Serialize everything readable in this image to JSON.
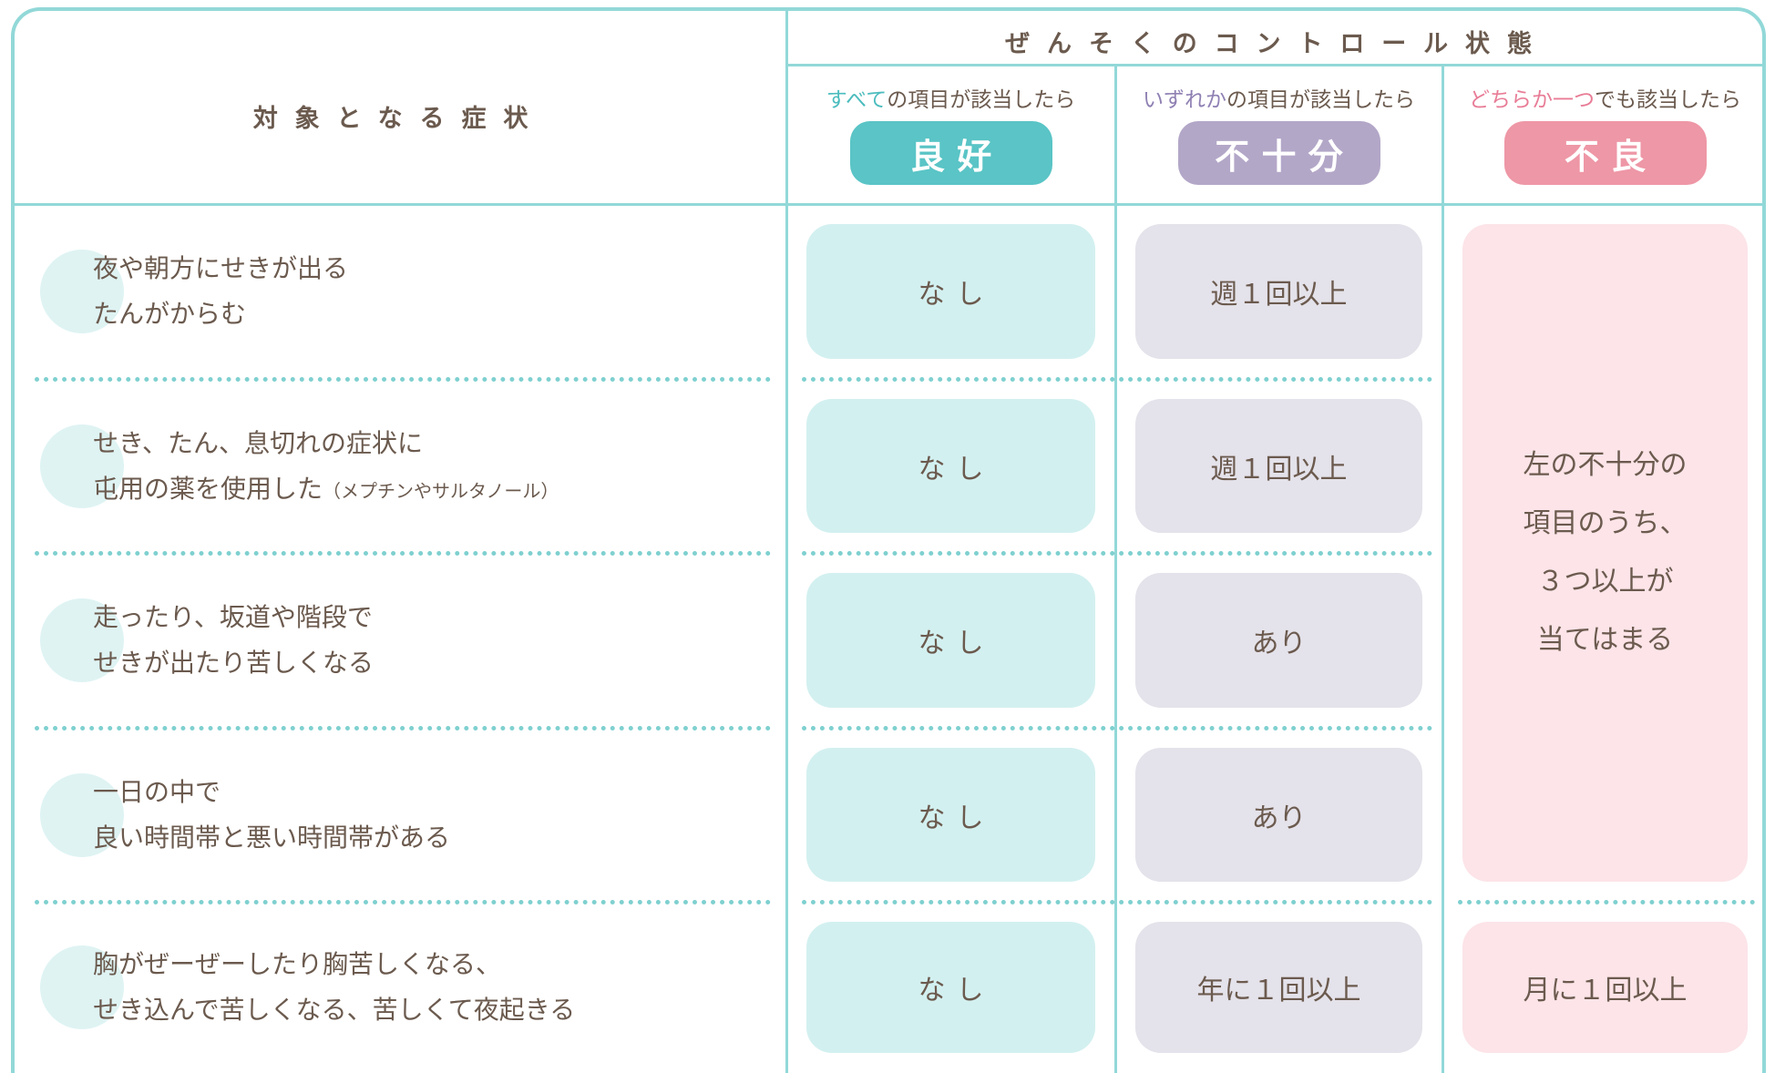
{
  "header": {
    "symptoms_label": "対象となる症状",
    "control_label": "ぜんそくのコントロール状態"
  },
  "columns": [
    {
      "condition_key": "すべて",
      "condition_rest": "の項目が該当したら",
      "label": "良好"
    },
    {
      "condition_key": "いずれか",
      "condition_rest": "の項目が該当したら",
      "label": "不十分"
    },
    {
      "condition_key": "どちらか一つ",
      "condition_rest": "でも該当したら",
      "label": "不良"
    }
  ],
  "rows": [
    {
      "symptom": [
        "夜や朝方にせきが出る",
        "たんがからむ"
      ],
      "good": "なし",
      "insufficient": "週１回以上"
    },
    {
      "symptom": [
        "せき、たん、息切れの症状に",
        "屯用の薬を使用した"
      ],
      "symptom_note": "（メプチンやサルタノール）",
      "good": "なし",
      "insufficient": "週１回以上"
    },
    {
      "symptom": [
        "走ったり、坂道や階段で",
        "せきが出たり苦しくなる"
      ],
      "good": "なし",
      "insufficient": "あり"
    },
    {
      "symptom": [
        "一日の中で",
        "良い時間帯と悪い時間帯がある"
      ],
      "good": "なし",
      "insufficient": "あり"
    },
    {
      "symptom": [
        "胸がぜーぜーしたり胸苦しくなる、",
        "せき込んで苦しくなる、苦しくて夜起きる"
      ],
      "good": "なし",
      "insufficient": "年に１回以上",
      "poor": "月に１回以上"
    }
  ],
  "poor_merged": [
    "左の不十分の",
    "項目のうち、",
    "３つ以上が",
    "当てはまる"
  ]
}
